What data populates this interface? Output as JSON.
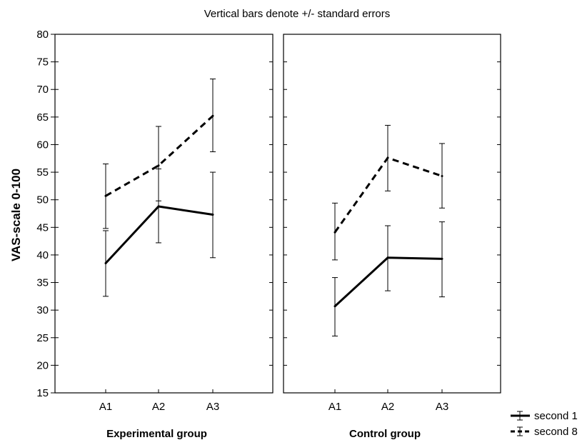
{
  "chart_data": {
    "type": "line",
    "title": "Vertical bars denote +/- standard errors",
    "ylabel": "VAS-scale 0-100",
    "ylim": [
      15,
      80
    ],
    "yticks": [
      "15",
      "20",
      "25",
      "30",
      "35",
      "40",
      "45",
      "50",
      "55",
      "60",
      "65",
      "70",
      "75",
      "80"
    ],
    "categories": [
      "A1",
      "A2",
      "A3"
    ],
    "legend_position": "bottom-right",
    "grid": false,
    "panels": [
      {
        "label": "Experimental group",
        "series": [
          {
            "name": "second 1",
            "style": "solid",
            "values": [
              38.5,
              48.8,
              47.3
            ],
            "err_low": [
              32.5,
              42.2,
              39.5
            ],
            "err_high": [
              44.4,
              55.6,
              55.0
            ]
          },
          {
            "name": "second 8",
            "style": "dashed",
            "values": [
              50.7,
              56.2,
              65.2
            ],
            "err_low": [
              44.8,
              49.8,
              58.7
            ],
            "err_high": [
              56.5,
              63.3,
              71.9
            ]
          }
        ]
      },
      {
        "label": "Control group",
        "series": [
          {
            "name": "second 1",
            "style": "solid",
            "values": [
              30.7,
              39.5,
              39.3
            ],
            "err_low": [
              25.3,
              33.5,
              32.4
            ],
            "err_high": [
              35.9,
              45.3,
              46.0
            ]
          },
          {
            "name": "second 8",
            "style": "dashed",
            "values": [
              44.1,
              57.6,
              54.3
            ],
            "err_low": [
              39.1,
              51.6,
              48.5
            ],
            "err_high": [
              49.4,
              63.5,
              60.2
            ]
          }
        ]
      }
    ],
    "colors": {
      "line": "#000000",
      "frame": "#000000",
      "background": "#ffffff"
    }
  }
}
